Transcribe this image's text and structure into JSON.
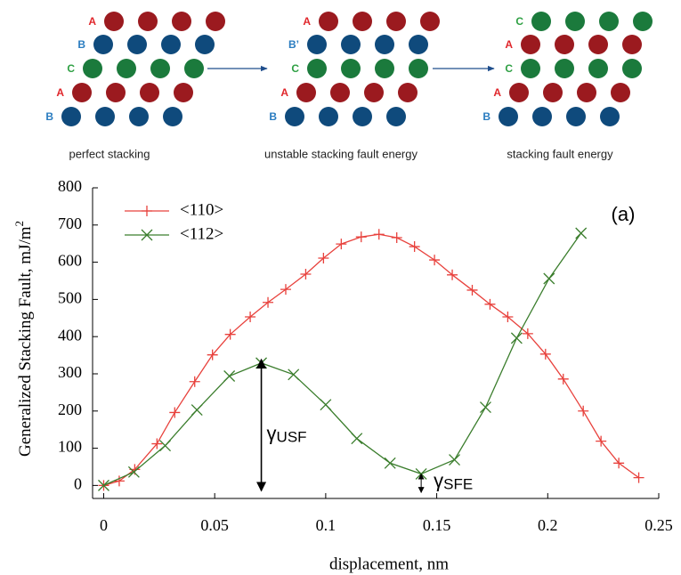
{
  "diagram": {
    "colors": {
      "A": {
        "label": "#e0262b",
        "circle": "#9b1a1f"
      },
      "B": {
        "label": "#2a7cc0",
        "circle": "#0f4a7c"
      },
      "C": {
        "label": "#2ea043",
        "circle": "#1b7a3c"
      }
    },
    "panels": [
      {
        "caption": "perfect stacking",
        "rows": [
          {
            "label": "A",
            "layer": "A"
          },
          {
            "label": "B",
            "layer": "B"
          },
          {
            "label": "C",
            "layer": "C"
          },
          {
            "label": "A",
            "layer": "A"
          },
          {
            "label": "B",
            "layer": "B"
          }
        ]
      },
      {
        "caption": "unstable stacking fault energy",
        "rows": [
          {
            "label": "A",
            "layer": "A"
          },
          {
            "label": "B’",
            "layer": "B"
          },
          {
            "label": "C",
            "layer": "C"
          },
          {
            "label": "A",
            "layer": "A"
          },
          {
            "label": "B",
            "layer": "B"
          }
        ]
      },
      {
        "caption": "stacking fault energy",
        "rows": [
          {
            "label": "C",
            "layer": "C"
          },
          {
            "label": "A",
            "layer": "A"
          },
          {
            "label": "C",
            "layer": "C"
          },
          {
            "label": "A",
            "layer": "A"
          },
          {
            "label": "B",
            "layer": "B"
          }
        ]
      }
    ]
  },
  "chart_data": {
    "type": "line",
    "xlabel": "displacement, nm",
    "ylabel": {
      "text": "Generalized Stacking Fault, mJ/m",
      "superscript": "2"
    },
    "xlim": [
      -0.005,
      0.25
    ],
    "ylim": [
      -35,
      800
    ],
    "xticks": [
      0,
      0.05,
      0.1,
      0.15,
      0.2,
      0.25
    ],
    "yticks": [
      0,
      100,
      200,
      300,
      400,
      500,
      600,
      700,
      800
    ],
    "legend": "upper left",
    "panel_label": "(a)",
    "series": [
      {
        "name": "<110>",
        "color": "#e8413c",
        "marker": "+",
        "x": [
          0,
          0.007,
          0.014,
          0.024,
          0.032,
          0.041,
          0.049,
          0.057,
          0.066,
          0.074,
          0.082,
          0.091,
          0.099,
          0.107,
          0.116,
          0.124,
          0.132,
          0.14,
          0.149,
          0.157,
          0.166,
          0.174,
          0.182,
          0.191,
          0.199,
          0.207,
          0.216,
          0.224,
          0.232,
          0.241
        ],
        "values": [
          0,
          12,
          43,
          112,
          196,
          279,
          351,
          406,
          453,
          492,
          527,
          568,
          611,
          649,
          668,
          675,
          666,
          642,
          606,
          566,
          525,
          487,
          453,
          408,
          353,
          286,
          200,
          119,
          60,
          21
        ]
      },
      {
        "name": "<112>",
        "color": "#3a7d2c",
        "marker": "x",
        "x": [
          0,
          0.0136,
          0.0277,
          0.042,
          0.0566,
          0.071,
          0.0855,
          0.1,
          0.114,
          0.129,
          0.143,
          0.158,
          0.172,
          0.186,
          0.2006,
          0.215
        ],
        "values": [
          0,
          36,
          107,
          203,
          294,
          329,
          298,
          217,
          126,
          60,
          31,
          69,
          210,
          396,
          556,
          678
        ]
      }
    ],
    "annotations": [
      {
        "symbol": "γ",
        "subscript": "USF",
        "series": 1,
        "point": 5
      },
      {
        "symbol": "γ",
        "subscript": "SFE",
        "series": 1,
        "point": 10
      }
    ]
  }
}
